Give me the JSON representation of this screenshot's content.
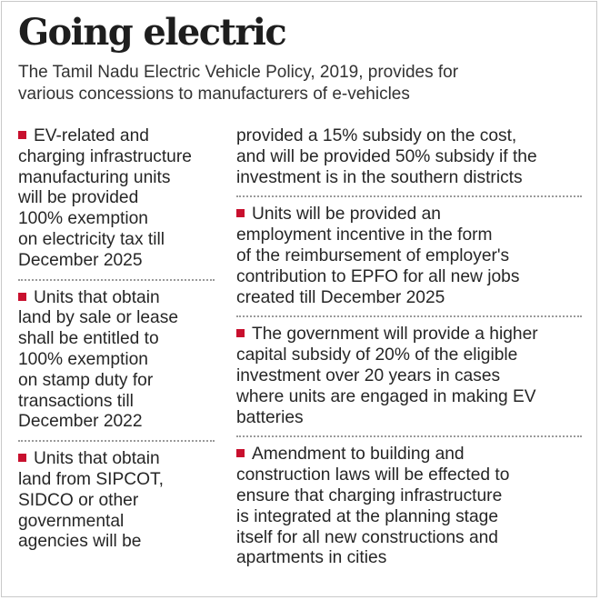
{
  "title": "Going electric",
  "subtitle_lines": [
    "The Tamil Nadu Electric Vehicle Policy, 2019, provides for",
    "various concessions to manufacturers of e-vehicles"
  ],
  "colors": {
    "bullet": "#c8102e",
    "text": "#262626",
    "separator": "#9a9a9a"
  },
  "left_column": [
    {
      "bullet": true,
      "lines": [
        "EV-related and",
        "charging infrastructure",
        "manufacturing units",
        "will be provided",
        "100% exemption",
        "on electricity tax till",
        "December 2025"
      ]
    },
    {
      "bullet": true,
      "lines": [
        "Units that obtain",
        "land by sale or lease",
        "shall be entitled to",
        "100% exemption",
        "on stamp duty for",
        "transactions till",
        "December 2022"
      ]
    },
    {
      "bullet": true,
      "lines": [
        "Units that obtain",
        "land from SIPCOT,",
        "SIDCO or other",
        "governmental",
        "agencies will be"
      ]
    }
  ],
  "right_column": [
    {
      "bullet": false,
      "lines": [
        "provided a 15% subsidy on the cost,",
        "and will be provided 50% subsidy if the",
        "investment is in the southern districts"
      ]
    },
    {
      "bullet": true,
      "lines": [
        "Units will be provided an",
        "employment incentive in the form",
        "of the reimbursement of employer's",
        "contribution to EPFO for all new jobs",
        "created till December 2025"
      ]
    },
    {
      "bullet": true,
      "lines": [
        "The government will provide a higher",
        "capital subsidy of 20% of the eligible",
        "investment over 20 years in cases",
        "where units are engaged in making EV",
        "batteries"
      ]
    },
    {
      "bullet": true,
      "lines": [
        "Amendment to building and",
        "construction laws will be effected to",
        "ensure that charging infrastructure",
        "is integrated at the planning stage",
        "itself for all new constructions and",
        "apartments in cities"
      ]
    }
  ]
}
